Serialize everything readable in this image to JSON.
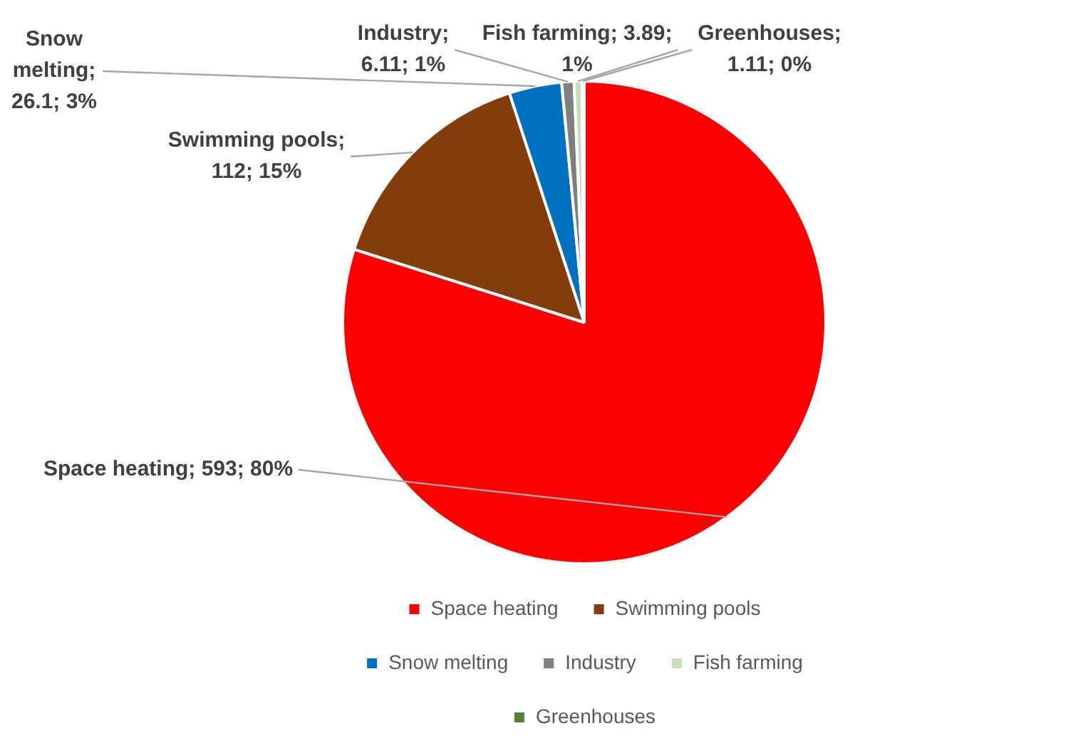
{
  "chart_data": {
    "type": "pie",
    "categories": [
      "Space heating",
      "Swimming pools",
      "Snow melting",
      "Industry",
      "Fish farming",
      "Greenhouses"
    ],
    "values": [
      593,
      112,
      26.1,
      6.11,
      3.89,
      1.11
    ],
    "colors": [
      "#ff0000",
      "#843c0c",
      "#0070c0",
      "#7f7f7f",
      "#c5e0b4",
      "#548235"
    ],
    "value_labels": [
      "Space heating; 593; 80%",
      "Swimming pools; 112; 15%",
      "Snow melting; 26.1; 3%",
      "Industry; 6.11; 1%",
      "Fish farming; 3.89; 1%",
      "Greenhouses; 1.11; 0%"
    ],
    "legend": "bottom"
  }
}
